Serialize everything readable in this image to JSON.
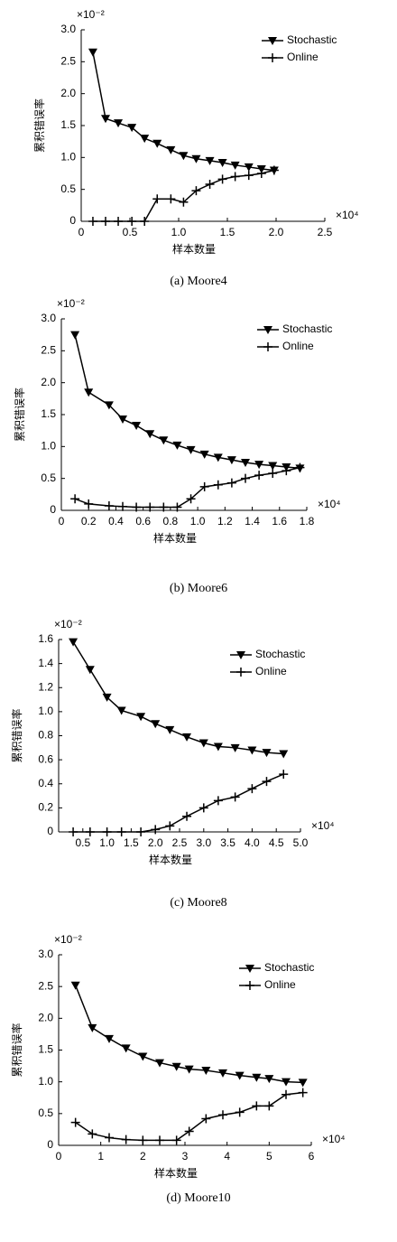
{
  "chart_data": [
    {
      "type": "line",
      "caption": "(a) Moore4",
      "x_label": "样本数量",
      "y_label": "累积错误率",
      "y_scale_label": "×10⁻²",
      "x_scale_label": "×10⁴",
      "legend": "upper right",
      "x": [
        0.12,
        0.25,
        0.38,
        0.52,
        0.65,
        0.78,
        0.92,
        1.05,
        1.18,
        1.32,
        1.45,
        1.58,
        1.72,
        1.85,
        1.98
      ],
      "series": [
        {
          "name": "Stochastic",
          "color": "#000000",
          "marker": "triangle-down",
          "values": [
            2.65,
            1.61,
            1.54,
            1.47,
            1.3,
            1.22,
            1.12,
            1.03,
            0.98,
            0.95,
            0.92,
            0.88,
            0.85,
            0.82,
            0.8
          ]
        },
        {
          "name": "Online",
          "color": "#000000",
          "marker": "plus",
          "values": [
            0,
            0,
            0,
            0,
            0,
            0.35,
            0.35,
            0.3,
            0.48,
            0.58,
            0.66,
            0.7,
            0.72,
            0.75,
            0.8
          ]
        }
      ],
      "xlim": [
        0,
        2.5
      ],
      "xticks": [
        0,
        0.5,
        {
          "value": 1,
          "label": "1.0"
        },
        1.5,
        {
          "value": 2,
          "label": "2.0"
        },
        2.5
      ],
      "ylim": [
        0,
        3
      ],
      "yticks": [
        0,
        0.5,
        {
          "value": 1,
          "label": "1.0"
        },
        1.5,
        {
          "value": 2,
          "label": "2.0"
        },
        2.5,
        {
          "value": 3,
          "label": "3.0"
        }
      ]
    },
    {
      "type": "line",
      "caption": "(b) Moore6",
      "x_label": "样本数量",
      "y_label": "累积错误率",
      "y_scale_label": "×10⁻²",
      "x_scale_label": "×10⁴",
      "legend": "upper right",
      "x": [
        0.1,
        0.2,
        0.35,
        0.45,
        0.55,
        0.65,
        0.75,
        0.85,
        0.95,
        1.05,
        1.15,
        1.25,
        1.35,
        1.45,
        1.55,
        1.65,
        1.75
      ],
      "series": [
        {
          "name": "Stochastic",
          "color": "#000000",
          "marker": "triangle-down",
          "values": [
            2.75,
            1.85,
            1.65,
            1.43,
            1.33,
            1.2,
            1.1,
            1.02,
            0.95,
            0.88,
            0.83,
            0.79,
            0.75,
            0.72,
            0.7,
            0.68,
            0.66
          ]
        },
        {
          "name": "Online",
          "color": "#000000",
          "marker": "plus",
          "values": [
            0.18,
            0.1,
            0.07,
            0.06,
            0.05,
            0.05,
            0.05,
            0.05,
            0.18,
            0.37,
            0.4,
            0.43,
            0.5,
            0.55,
            0.58,
            0.62,
            0.67
          ]
        }
      ],
      "xlim": [
        0,
        1.8
      ],
      "xticks": [
        0,
        0.2,
        0.4,
        0.6,
        0.8,
        {
          "value": 1,
          "label": "1.0"
        },
        1.2,
        1.4,
        1.6,
        1.8
      ],
      "ylim": [
        0,
        3
      ],
      "yticks": [
        0,
        0.5,
        {
          "value": 1,
          "label": "1.0"
        },
        1.5,
        {
          "value": 2,
          "label": "2.0"
        },
        2.5,
        {
          "value": 3,
          "label": "3.0"
        }
      ]
    },
    {
      "type": "line",
      "caption": "(c) Moore8",
      "x_label": "样本数量",
      "y_label": "累积错误率",
      "y_scale_label": "×10⁻²",
      "x_scale_label": "×10⁴",
      "legend": "upper right",
      "x": [
        0.3,
        0.65,
        1.0,
        1.3,
        1.7,
        2.0,
        2.3,
        2.65,
        3.0,
        3.3,
        3.65,
        4.0,
        4.3,
        4.65
      ],
      "series": [
        {
          "name": "Stochastic",
          "color": "#000000",
          "marker": "triangle-down",
          "values": [
            1.58,
            1.35,
            1.12,
            1.01,
            0.96,
            0.9,
            0.85,
            0.79,
            0.74,
            0.71,
            0.7,
            0.68,
            0.66,
            0.65
          ]
        },
        {
          "name": "Online",
          "color": "#000000",
          "marker": "plus",
          "values": [
            0,
            0,
            0,
            0,
            0,
            0.02,
            0.05,
            0.13,
            0.2,
            0.26,
            0.29,
            0.36,
            0.42,
            0.48
          ]
        }
      ],
      "xlim": [
        0,
        5
      ],
      "xticks": [
        0.5,
        {
          "value": 1,
          "label": "1.0"
        },
        1.5,
        {
          "value": 2,
          "label": "2.0"
        },
        2.5,
        {
          "value": 3,
          "label": "3.0"
        },
        3.5,
        {
          "value": 4,
          "label": "4.0"
        },
        4.5,
        {
          "value": 5,
          "label": "5.0"
        }
      ],
      "ylim": [
        0,
        1.6
      ],
      "yticks": [
        0,
        0.2,
        0.4,
        0.6,
        0.8,
        {
          "value": 1,
          "label": "1.0"
        },
        1.2,
        1.4,
        1.6
      ]
    },
    {
      "type": "line",
      "caption": "(d) Moore10",
      "x_label": "样本数量",
      "y_label": "累积错误率",
      "y_scale_label": "×10⁻²",
      "x_scale_label": "×10⁴",
      "legend": "upper right",
      "x": [
        0.4,
        0.8,
        1.2,
        1.6,
        2.0,
        2.4,
        2.8,
        3.1,
        3.5,
        3.9,
        4.3,
        4.7,
        5.0,
        5.4,
        5.8
      ],
      "series": [
        {
          "name": "Stochastic",
          "color": "#000000",
          "marker": "triangle-down",
          "values": [
            2.52,
            1.85,
            1.68,
            1.53,
            1.4,
            1.3,
            1.24,
            1.2,
            1.18,
            1.14,
            1.1,
            1.07,
            1.05,
            1.0,
            0.99
          ]
        },
        {
          "name": "Online",
          "color": "#000000",
          "marker": "plus",
          "values": [
            0.36,
            0.18,
            0.12,
            0.09,
            0.08,
            0.08,
            0.08,
            0.22,
            0.42,
            0.48,
            0.52,
            0.62,
            0.62,
            0.8,
            0.83
          ]
        }
      ],
      "xlim": [
        0,
        6
      ],
      "xticks": [
        0,
        1,
        2,
        3,
        4,
        5,
        6
      ],
      "ylim": [
        0,
        3
      ],
      "yticks": [
        0,
        0.5,
        {
          "value": 1,
          "label": "1.0"
        },
        1.5,
        {
          "value": 2,
          "label": "2.0"
        },
        2.5,
        {
          "value": 3,
          "label": "3.0"
        }
      ]
    }
  ]
}
